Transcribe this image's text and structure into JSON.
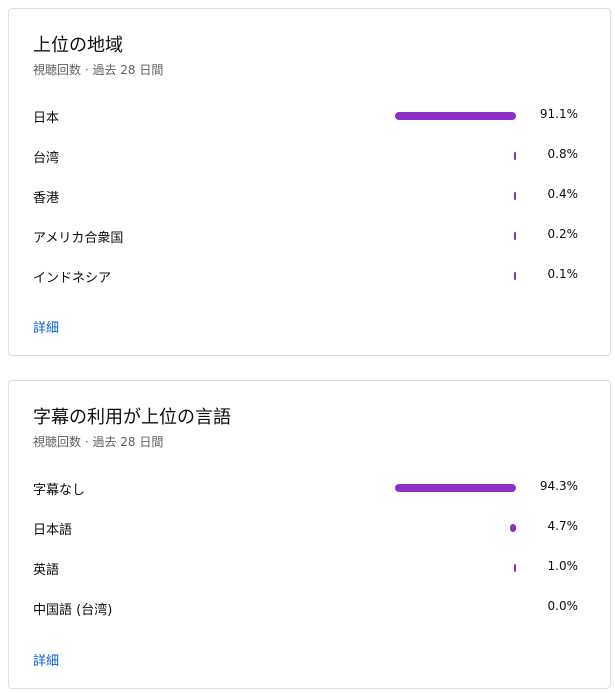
{
  "bar_color": "#8b2fc9",
  "region_card": {
    "title": "上位の地域",
    "subtitle": "視聴回数 · 過去 28 日間",
    "rows": [
      {
        "label": "日本",
        "percent": 91.1,
        "value": "91.1%"
      },
      {
        "label": "台湾",
        "percent": 0.8,
        "value": "0.8%"
      },
      {
        "label": "香港",
        "percent": 0.4,
        "value": "0.4%"
      },
      {
        "label": "アメリカ合衆国",
        "percent": 0.2,
        "value": "0.2%"
      },
      {
        "label": "インドネシア",
        "percent": 0.1,
        "value": "0.1%"
      }
    ],
    "more_label": "詳細"
  },
  "language_card": {
    "title": "字幕の利用が上位の言語",
    "subtitle": "視聴回数 · 過去 28 日間",
    "rows": [
      {
        "label": "字幕なし",
        "percent": 94.3,
        "value": "94.3%"
      },
      {
        "label": "日本語",
        "percent": 4.7,
        "value": "4.7%"
      },
      {
        "label": "英語",
        "percent": 1.0,
        "value": "1.0%"
      },
      {
        "label": "中国語 (台湾)",
        "percent": 0.0,
        "value": "0.0%"
      }
    ],
    "more_label": "詳細"
  }
}
